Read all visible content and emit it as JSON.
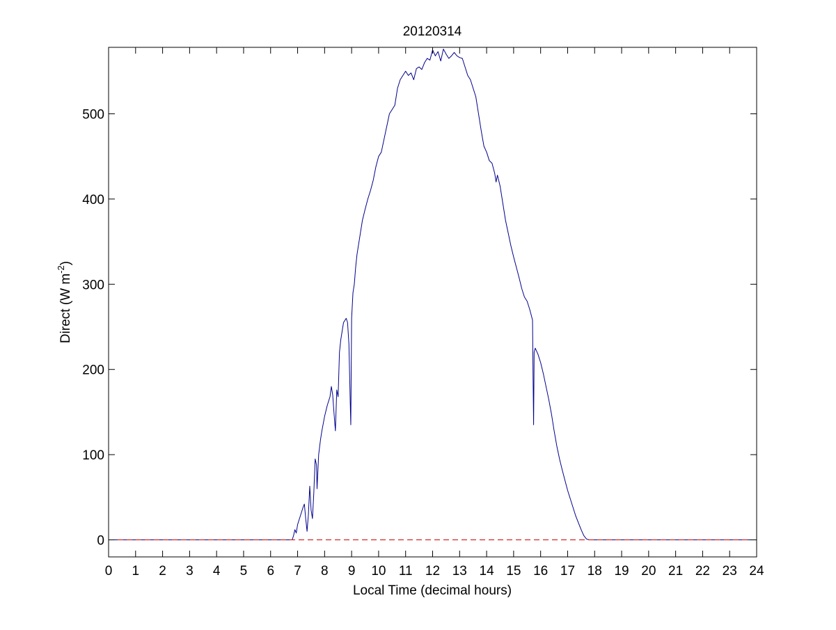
{
  "chart_data": {
    "type": "line",
    "title": "20120314",
    "xlabel": "Local Time (decimal hours)",
    "ylabel": {
      "main": "Direct (W m",
      "sup": "-2",
      "close": ")"
    },
    "xlim": [
      0,
      24
    ],
    "ylim": [
      -20,
      578
    ],
    "xticks": [
      0,
      1,
      2,
      3,
      4,
      5,
      6,
      7,
      8,
      9,
      10,
      11,
      12,
      13,
      14,
      15,
      16,
      17,
      18,
      19,
      20,
      21,
      22,
      23,
      24
    ],
    "xtick_labels": [
      "0",
      "1",
      "2",
      "3",
      "4",
      "5",
      "6",
      "7",
      "8",
      "9",
      "10",
      "11",
      "12",
      "13",
      "14",
      "15",
      "16",
      "17",
      "18",
      "19",
      "20",
      "21",
      "22",
      "23",
      "24"
    ],
    "yticks": [
      0,
      100,
      200,
      300,
      400,
      500
    ],
    "ytick_labels": [
      "0",
      "100",
      "200",
      "300",
      "400",
      "500"
    ],
    "grid": false,
    "series": [
      {
        "color": "#00008b",
        "style": "solid",
        "points": [
          [
            0,
            0
          ],
          [
            6.8,
            0
          ],
          [
            6.85,
            5
          ],
          [
            6.9,
            12
          ],
          [
            6.95,
            8
          ],
          [
            7.0,
            18
          ],
          [
            7.1,
            28
          ],
          [
            7.2,
            38
          ],
          [
            7.25,
            42
          ],
          [
            7.3,
            25
          ],
          [
            7.35,
            10
          ],
          [
            7.4,
            30
          ],
          [
            7.45,
            63
          ],
          [
            7.5,
            35
          ],
          [
            7.55,
            25
          ],
          [
            7.6,
            55
          ],
          [
            7.65,
            95
          ],
          [
            7.7,
            88
          ],
          [
            7.72,
            60
          ],
          [
            7.78,
            100
          ],
          [
            7.85,
            118
          ],
          [
            7.9,
            128
          ],
          [
            8.0,
            145
          ],
          [
            8.1,
            158
          ],
          [
            8.2,
            168
          ],
          [
            8.25,
            180
          ],
          [
            8.3,
            170
          ],
          [
            8.35,
            148
          ],
          [
            8.4,
            128
          ],
          [
            8.45,
            176
          ],
          [
            8.5,
            168
          ],
          [
            8.55,
            220
          ],
          [
            8.6,
            235
          ],
          [
            8.7,
            255
          ],
          [
            8.8,
            260
          ],
          [
            8.85,
            255
          ],
          [
            8.9,
            230
          ],
          [
            8.95,
            160
          ],
          [
            8.97,
            135
          ],
          [
            9.0,
            260
          ],
          [
            9.05,
            290
          ],
          [
            9.1,
            300
          ],
          [
            9.15,
            320
          ],
          [
            9.2,
            335
          ],
          [
            9.3,
            355
          ],
          [
            9.4,
            375
          ],
          [
            9.5,
            388
          ],
          [
            9.6,
            400
          ],
          [
            9.7,
            410
          ],
          [
            9.8,
            422
          ],
          [
            9.9,
            438
          ],
          [
            10.0,
            450
          ],
          [
            10.1,
            455
          ],
          [
            10.2,
            470
          ],
          [
            10.3,
            485
          ],
          [
            10.4,
            500
          ],
          [
            10.5,
            505
          ],
          [
            10.6,
            510
          ],
          [
            10.7,
            530
          ],
          [
            10.8,
            540
          ],
          [
            10.9,
            545
          ],
          [
            11.0,
            550
          ],
          [
            11.1,
            545
          ],
          [
            11.2,
            548
          ],
          [
            11.3,
            540
          ],
          [
            11.4,
            553
          ],
          [
            11.5,
            555
          ],
          [
            11.6,
            552
          ],
          [
            11.7,
            560
          ],
          [
            11.8,
            565
          ],
          [
            11.9,
            563
          ],
          [
            12.0,
            575
          ],
          [
            12.1,
            568
          ],
          [
            12.2,
            573
          ],
          [
            12.3,
            562
          ],
          [
            12.4,
            576
          ],
          [
            12.5,
            570
          ],
          [
            12.6,
            565
          ],
          [
            12.7,
            568
          ],
          [
            12.8,
            572
          ],
          [
            12.9,
            568
          ],
          [
            13.0,
            566
          ],
          [
            13.1,
            565
          ],
          [
            13.2,
            555
          ],
          [
            13.3,
            545
          ],
          [
            13.4,
            540
          ],
          [
            13.5,
            530
          ],
          [
            13.6,
            520
          ],
          [
            13.7,
            500
          ],
          [
            13.8,
            480
          ],
          [
            13.9,
            462
          ],
          [
            14.0,
            455
          ],
          [
            14.1,
            445
          ],
          [
            14.2,
            442
          ],
          [
            14.3,
            430
          ],
          [
            14.35,
            420
          ],
          [
            14.4,
            428
          ],
          [
            14.5,
            415
          ],
          [
            14.6,
            395
          ],
          [
            14.7,
            375
          ],
          [
            14.8,
            360
          ],
          [
            14.9,
            345
          ],
          [
            15.0,
            332
          ],
          [
            15.1,
            320
          ],
          [
            15.2,
            308
          ],
          [
            15.3,
            295
          ],
          [
            15.4,
            285
          ],
          [
            15.5,
            280
          ],
          [
            15.6,
            270
          ],
          [
            15.7,
            258
          ],
          [
            15.72,
            190
          ],
          [
            15.74,
            135
          ],
          [
            15.76,
            220
          ],
          [
            15.8,
            225
          ],
          [
            15.9,
            218
          ],
          [
            16.0,
            208
          ],
          [
            16.1,
            195
          ],
          [
            16.2,
            180
          ],
          [
            16.3,
            165
          ],
          [
            16.4,
            148
          ],
          [
            16.5,
            128
          ],
          [
            16.6,
            110
          ],
          [
            16.7,
            95
          ],
          [
            16.8,
            82
          ],
          [
            16.9,
            70
          ],
          [
            17.0,
            58
          ],
          [
            17.1,
            48
          ],
          [
            17.2,
            38
          ],
          [
            17.3,
            28
          ],
          [
            17.4,
            20
          ],
          [
            17.5,
            12
          ],
          [
            17.6,
            5
          ],
          [
            17.7,
            1
          ],
          [
            17.8,
            0
          ],
          [
            24,
            0
          ]
        ]
      },
      {
        "color": "#cc0000",
        "style": "dashed",
        "points": [
          [
            0,
            0
          ],
          [
            24,
            0
          ]
        ]
      }
    ]
  }
}
